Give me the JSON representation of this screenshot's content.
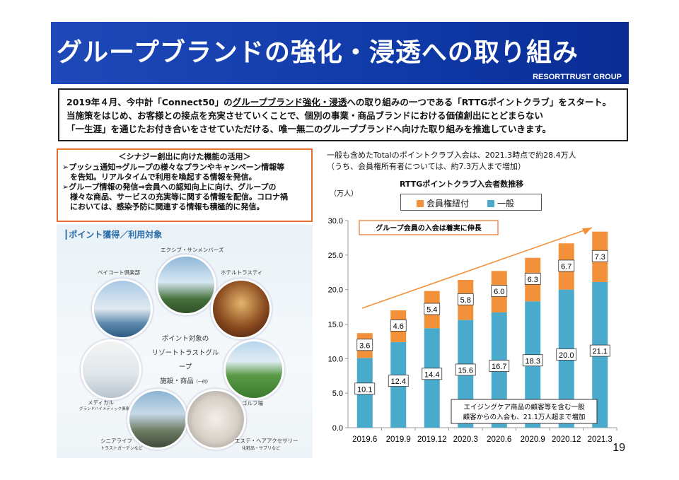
{
  "header": {
    "title": "グループブランドの強化・浸透への取り組み",
    "company": "RESORTTRUST GROUP"
  },
  "summary": {
    "line1_a": "2019年４月、今中計「Connect50」の",
    "line1_b": "グループブランド強化・浸透",
    "line1_c": "への取り組みの一つである「RTTGポイントクラブ」をスタート。",
    "line2": "当施策をはじめ、お客様との接点を充実させていくことで、個別の事業・商品ブランドにおける価値創出にとどまらない",
    "line3": "「一生涯」を通じたお付き合いをさせていただける、唯一無二のグループブランドへ向けた取り組みを推進していきます。"
  },
  "synergy": {
    "title": "＜シナジー創出に向けた機能の活用＞",
    "line1": "➢プッシュ通知⇒グループの様々なプランやキャンペーン情報等",
    "line2": "　を告知。リアルタイムで利用を喚起する情報を発信。",
    "line3": "➢グループ情報の発信⇒会員への認知向上に向け、グループの",
    "line4": "　様々な商品、サービスの充実等に関する情報を配信。コロナ禍",
    "line5": "　においては、感染予防に関連する情報も積極的に発信。"
  },
  "points_panel": {
    "title": "┃ポイント獲得／利用対象",
    "center_1": "ポイント対象の",
    "center_2": "リゾートトラストグループ",
    "center_3": "施設・商品",
    "center_3_small": "（一例）",
    "labels": {
      "xiv": "エクシブ・サンメンバーズ",
      "baycourt": "ベイコート倶楽部",
      "hotel": "ホテルトラスティ",
      "golf": "ゴルフ場",
      "medical": "メディカル",
      "medical_sub": "グランドハイメディック倶楽部 クリニック・病院",
      "senior": "シニアライフ",
      "senior_sub": "トラストガーデンなど",
      "esthe": "エステ・ヘアアクセサリー",
      "esthe_sub": "化粧品・サプリなど"
    }
  },
  "notes": {
    "line1": "一般も含めたTotalのポイントクラブ入会は、2021.3時点で約28.4万人",
    "line2": "（うち、会員権所有者については、約7.3万人まで増加）",
    "unit": "（万人）",
    "callout_top": "グループ会員の入会は着実に伸長",
    "callout_bottom_1": "エイジングケア商品の顧客等を含む一般",
    "callout_bottom_2": "顧客からの入会も、21.1万人超まで増加"
  },
  "page_number": "19",
  "colors": {
    "member": "#f3913a",
    "general": "#4aaacb",
    "header_blue": "#1646b0",
    "accent_orange": "#e8702a"
  },
  "chart_data": {
    "type": "bar",
    "stacked": true,
    "title": "RTTGポイントクラブ入会者数推移",
    "ylabel": "（万人）",
    "categories": [
      "2019.6",
      "2019.9",
      "2019.12",
      "2020.3",
      "2020.6",
      "2020.9",
      "2020.12",
      "2021.3"
    ],
    "series": [
      {
        "name": "一般",
        "color": "#4aaacb",
        "values": [
          10.1,
          12.4,
          14.4,
          15.6,
          16.7,
          18.3,
          20.0,
          21.1
        ]
      },
      {
        "name": "会員権紐付",
        "color": "#f3913a",
        "values": [
          3.6,
          4.6,
          5.4,
          5.8,
          6.0,
          6.3,
          6.7,
          7.3
        ]
      }
    ],
    "ylim": [
      0,
      30
    ],
    "yticks": [
      "0.0",
      "5.0",
      "10.0",
      "15.0",
      "20.0",
      "25.0",
      "30.0"
    ],
    "grid": false,
    "legend": "top"
  }
}
